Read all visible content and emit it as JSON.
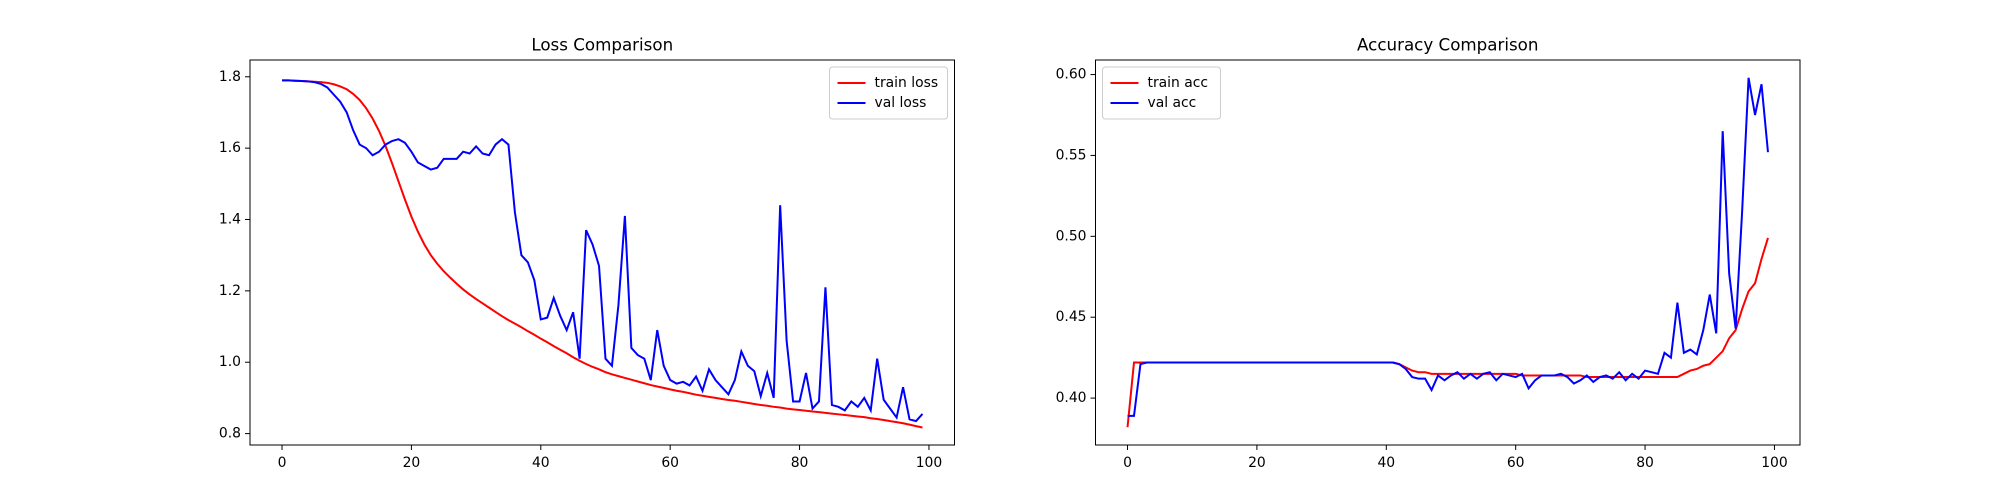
{
  "chart_data": [
    {
      "type": "line",
      "title": "Loss Comparison",
      "legend": "upper right",
      "grid": false,
      "xlim": [
        -4.95,
        103.95
      ],
      "xticks": [
        0,
        20,
        40,
        60,
        80,
        100
      ],
      "ylim": [
        0.768,
        1.847
      ],
      "yticks": [
        0.8,
        {
          "value": 1,
          "label": "1.0"
        },
        1.2,
        1.4,
        1.6,
        1.8
      ],
      "x": [
        0,
        1,
        2,
        3,
        4,
        5,
        6,
        7,
        8,
        9,
        10,
        11,
        12,
        13,
        14,
        15,
        16,
        17,
        18,
        19,
        20,
        21,
        22,
        23,
        24,
        25,
        26,
        27,
        28,
        29,
        30,
        31,
        32,
        33,
        34,
        35,
        36,
        37,
        38,
        39,
        40,
        41,
        42,
        43,
        44,
        45,
        46,
        47,
        48,
        49,
        50,
        51,
        52,
        53,
        54,
        55,
        56,
        57,
        58,
        59,
        60,
        61,
        62,
        63,
        64,
        65,
        66,
        67,
        68,
        69,
        70,
        71,
        72,
        73,
        74,
        75,
        76,
        77,
        78,
        79,
        80,
        81,
        82,
        83,
        84,
        85,
        86,
        87,
        88,
        89,
        90,
        91,
        92,
        93,
        94,
        95,
        96,
        97,
        98,
        99
      ],
      "series": [
        {
          "name": "train loss",
          "color": "#ff0000",
          "values": [
            1.79,
            1.79,
            1.789,
            1.788,
            1.787,
            1.786,
            1.785,
            1.783,
            1.779,
            1.773,
            1.765,
            1.752,
            1.735,
            1.712,
            1.683,
            1.648,
            1.606,
            1.558,
            1.507,
            1.456,
            1.408,
            1.366,
            1.33,
            1.3,
            1.276,
            1.255,
            1.237,
            1.22,
            1.204,
            1.19,
            1.177,
            1.165,
            1.153,
            1.141,
            1.129,
            1.118,
            1.108,
            1.098,
            1.087,
            1.077,
            1.066,
            1.056,
            1.045,
            1.035,
            1.025,
            1.014,
            1.004,
            0.995,
            0.987,
            0.98,
            0.972,
            0.966,
            0.961,
            0.956,
            0.951,
            0.946,
            0.941,
            0.936,
            0.932,
            0.928,
            0.924,
            0.92,
            0.917,
            0.913,
            0.909,
            0.906,
            0.903,
            0.9,
            0.897,
            0.894,
            0.892,
            0.889,
            0.886,
            0.883,
            0.88,
            0.878,
            0.875,
            0.873,
            0.87,
            0.868,
            0.866,
            0.864,
            0.862,
            0.86,
            0.858,
            0.856,
            0.854,
            0.852,
            0.85,
            0.848,
            0.846,
            0.843,
            0.841,
            0.838,
            0.835,
            0.832,
            0.829,
            0.825,
            0.821,
            0.817
          ]
        },
        {
          "name": "val loss",
          "color": "#0000ff",
          "values": [
            1.79,
            1.79,
            1.789,
            1.788,
            1.787,
            1.785,
            1.78,
            1.77,
            1.75,
            1.73,
            1.7,
            1.65,
            1.61,
            1.6,
            1.58,
            1.59,
            1.61,
            1.62,
            1.625,
            1.615,
            1.59,
            1.56,
            1.55,
            1.54,
            1.545,
            1.57,
            1.57,
            1.57,
            1.59,
            1.585,
            1.605,
            1.585,
            1.58,
            1.61,
            1.625,
            1.61,
            1.42,
            1.3,
            1.28,
            1.23,
            1.12,
            1.125,
            1.18,
            1.13,
            1.09,
            1.14,
            1.01,
            1.37,
            1.33,
            1.27,
            1.01,
            0.99,
            1.16,
            1.41,
            1.04,
            1.02,
            1.01,
            0.95,
            1.09,
            0.99,
            0.95,
            0.94,
            0.945,
            0.935,
            0.96,
            0.92,
            0.98,
            0.95,
            0.93,
            0.91,
            0.95,
            1.03,
            0.99,
            0.975,
            0.905,
            0.97,
            0.9,
            1.44,
            1.06,
            0.89,
            0.89,
            0.97,
            0.87,
            0.89,
            1.21,
            0.88,
            0.875,
            0.865,
            0.89,
            0.875,
            0.9,
            0.865,
            1.01,
            0.895,
            0.87,
            0.845,
            0.93,
            0.84,
            0.835,
            0.855
          ]
        }
      ]
    },
    {
      "type": "line",
      "title": "Accuracy Comparison",
      "legend": "upper left",
      "grid": false,
      "xlim": [
        -4.95,
        103.95
      ],
      "xticks": [
        0,
        20,
        40,
        60,
        80,
        100
      ],
      "ylim": [
        0.371,
        0.609
      ],
      "yticks": [
        {
          "value": 0.4,
          "label": "0.40"
        },
        0.45,
        {
          "value": 0.5,
          "label": "0.50"
        },
        0.55,
        {
          "value": 0.6,
          "label": "0.60"
        }
      ],
      "x": [
        0,
        1,
        2,
        3,
        4,
        5,
        6,
        7,
        8,
        9,
        10,
        11,
        12,
        13,
        14,
        15,
        16,
        17,
        18,
        19,
        20,
        21,
        22,
        23,
        24,
        25,
        26,
        27,
        28,
        29,
        30,
        31,
        32,
        33,
        34,
        35,
        36,
        37,
        38,
        39,
        40,
        41,
        42,
        43,
        44,
        45,
        46,
        47,
        48,
        49,
        50,
        51,
        52,
        53,
        54,
        55,
        56,
        57,
        58,
        59,
        60,
        61,
        62,
        63,
        64,
        65,
        66,
        67,
        68,
        69,
        70,
        71,
        72,
        73,
        74,
        75,
        76,
        77,
        78,
        79,
        80,
        81,
        82,
        83,
        84,
        85,
        86,
        87,
        88,
        89,
        90,
        91,
        92,
        93,
        94,
        95,
        96,
        97,
        98,
        99
      ],
      "series": [
        {
          "name": "train acc",
          "color": "#ff0000",
          "values": [
            0.382,
            0.422,
            0.422,
            0.422,
            0.422,
            0.422,
            0.422,
            0.422,
            0.422,
            0.422,
            0.422,
            0.422,
            0.422,
            0.422,
            0.422,
            0.422,
            0.422,
            0.422,
            0.422,
            0.422,
            0.422,
            0.422,
            0.422,
            0.422,
            0.422,
            0.422,
            0.422,
            0.422,
            0.422,
            0.422,
            0.422,
            0.422,
            0.422,
            0.422,
            0.422,
            0.422,
            0.422,
            0.422,
            0.422,
            0.422,
            0.422,
            0.422,
            0.421,
            0.419,
            0.417,
            0.416,
            0.416,
            0.415,
            0.415,
            0.415,
            0.415,
            0.415,
            0.415,
            0.415,
            0.415,
            0.415,
            0.415,
            0.415,
            0.415,
            0.415,
            0.415,
            0.414,
            0.414,
            0.414,
            0.414,
            0.414,
            0.414,
            0.414,
            0.414,
            0.414,
            0.414,
            0.413,
            0.413,
            0.413,
            0.413,
            0.413,
            0.413,
            0.413,
            0.413,
            0.413,
            0.413,
            0.413,
            0.413,
            0.413,
            0.413,
            0.413,
            0.415,
            0.417,
            0.418,
            0.42,
            0.421,
            0.425,
            0.429,
            0.437,
            0.442,
            0.455,
            0.466,
            0.471,
            0.486,
            0.499
          ]
        },
        {
          "name": "val acc",
          "color": "#0000ff",
          "values": [
            0.389,
            0.389,
            0.421,
            0.422,
            0.422,
            0.422,
            0.422,
            0.422,
            0.422,
            0.422,
            0.422,
            0.422,
            0.422,
            0.422,
            0.422,
            0.422,
            0.422,
            0.422,
            0.422,
            0.422,
            0.422,
            0.422,
            0.422,
            0.422,
            0.422,
            0.422,
            0.422,
            0.422,
            0.422,
            0.422,
            0.422,
            0.422,
            0.422,
            0.422,
            0.422,
            0.422,
            0.422,
            0.422,
            0.422,
            0.422,
            0.422,
            0.422,
            0.421,
            0.418,
            0.413,
            0.412,
            0.412,
            0.405,
            0.414,
            0.411,
            0.414,
            0.416,
            0.412,
            0.415,
            0.412,
            0.415,
            0.416,
            0.411,
            0.415,
            0.414,
            0.413,
            0.415,
            0.406,
            0.411,
            0.414,
            0.414,
            0.414,
            0.415,
            0.413,
            0.409,
            0.411,
            0.414,
            0.41,
            0.413,
            0.414,
            0.412,
            0.416,
            0.411,
            0.415,
            0.412,
            0.417,
            0.416,
            0.415,
            0.428,
            0.425,
            0.459,
            0.428,
            0.43,
            0.427,
            0.442,
            0.464,
            0.44,
            0.565,
            0.477,
            0.443,
            0.515,
            0.598,
            0.575,
            0.594,
            0.552
          ]
        }
      ]
    }
  ]
}
